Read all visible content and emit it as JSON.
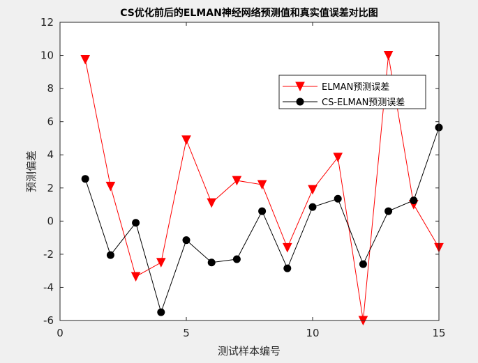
{
  "chart_data": {
    "type": "line",
    "title": "CS优化前后的ELMAN神经网络预测值和真实值误差对比图",
    "xlabel": "测试样本编号",
    "ylabel": "预测偏差",
    "xlim": [
      0,
      15
    ],
    "ylim": [
      -6,
      12
    ],
    "x_ticks": [
      0,
      5,
      10,
      15
    ],
    "y_ticks": [
      -6,
      -4,
      -2,
      0,
      2,
      4,
      6,
      8,
      10,
      12
    ],
    "grid": false,
    "legend_position": "top-right",
    "x": [
      1,
      2,
      3,
      4,
      5,
      6,
      7,
      8,
      9,
      10,
      11,
      12,
      13,
      14,
      15
    ],
    "series": [
      {
        "name": "ELMAN预测误差",
        "color": "#ff0000",
        "marker": "triangle-down",
        "values": [
          9.75,
          2.1,
          -3.35,
          -2.5,
          4.9,
          1.1,
          2.45,
          2.2,
          -1.6,
          1.9,
          3.85,
          -6.0,
          10.0,
          1.0,
          -1.6
        ]
      },
      {
        "name": "CS-ELMAN预测误差",
        "color": "#000000",
        "marker": "circle",
        "values": [
          2.55,
          -2.05,
          -0.1,
          -5.5,
          -1.15,
          -2.5,
          -2.3,
          0.6,
          -2.85,
          0.85,
          1.35,
          -2.6,
          0.6,
          1.25,
          5.65
        ]
      }
    ]
  }
}
